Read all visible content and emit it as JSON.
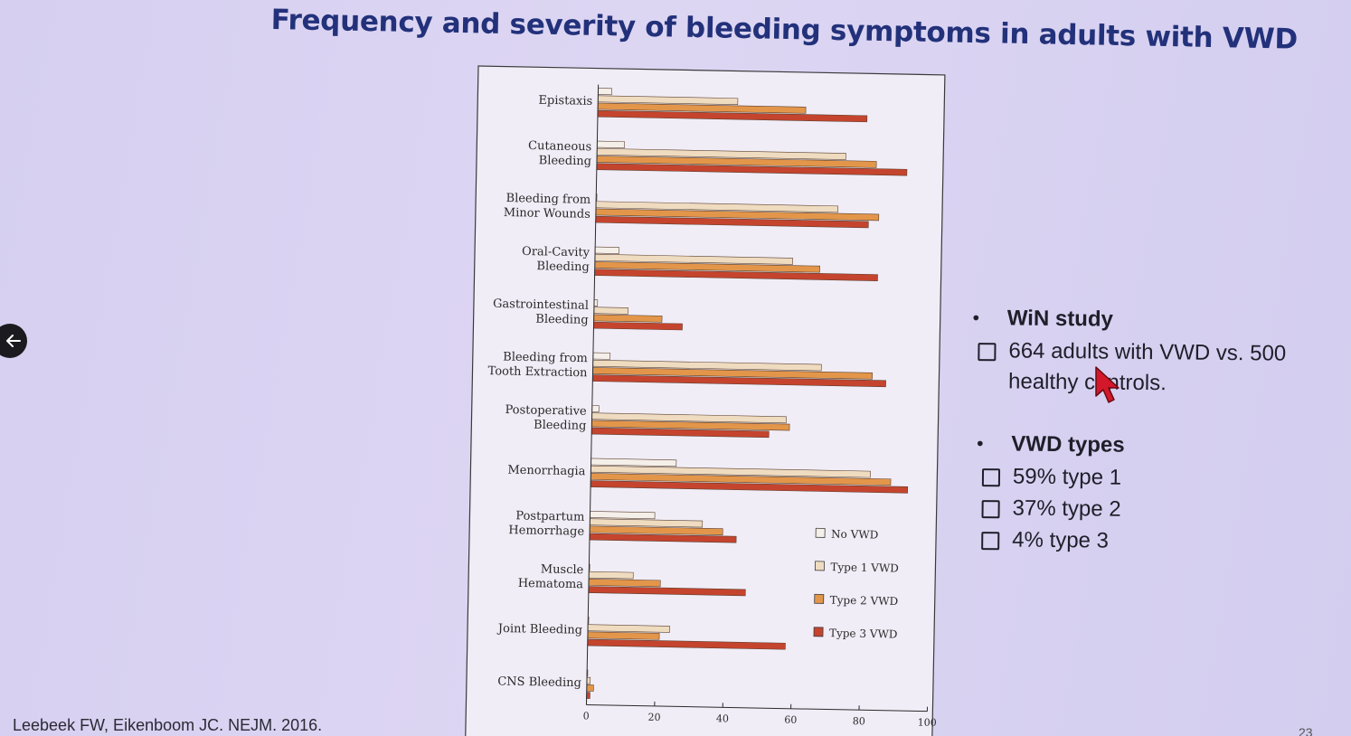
{
  "slide": {
    "title": "Frequency and severity of bleeding symptoms in adults with VWD",
    "citation": "Leebeek FW, Eikenboom JC. NEJM. 2016.",
    "page_number": "23"
  },
  "bullets": [
    {
      "heading": "WiN study",
      "items": [
        "664 adults with VWD vs. 500 healthy controls."
      ]
    },
    {
      "heading": "VWD types",
      "items": [
        "59% type 1",
        "37% type 2",
        "4% type 3"
      ]
    }
  ],
  "colors": {
    "title": "#22317a",
    "no_vwd": "#f4efe8",
    "type1": "#efdcc0",
    "type2": "#e3964a",
    "type3": "#c5442e",
    "back_button": "#1b1b1f",
    "cursor": "#d2182a"
  },
  "icons": {
    "back": "arrow-left-icon",
    "pointer": "mouse-cursor-icon"
  },
  "chart_data": {
    "type": "bar",
    "orientation": "horizontal",
    "categories": [
      "Epistaxis",
      "Cutaneous Bleeding",
      "Bleeding from Minor Wounds",
      "Oral-Cavity Bleeding",
      "Gastrointestinal Bleeding",
      "Bleeding from Tooth Extraction",
      "Postoperative Bleeding",
      "Menorrhagia",
      "Postpartum Hemorrhage",
      "Muscle Hematoma",
      "Joint Bleeding",
      "CNS Bleeding"
    ],
    "category_lines": [
      [
        "Epistaxis"
      ],
      [
        "Cutaneous",
        "Bleeding"
      ],
      [
        "Bleeding from",
        "Minor Wounds"
      ],
      [
        "Oral-Cavity",
        "Bleeding"
      ],
      [
        "Gastrointestinal",
        "Bleeding"
      ],
      [
        "Bleeding from",
        "Tooth Extraction"
      ],
      [
        "Postoperative",
        "Bleeding"
      ],
      [
        "Menorrhagia"
      ],
      [
        "Postpartum",
        "Hemorrhage"
      ],
      [
        "Muscle",
        "Hematoma"
      ],
      [
        "Joint Bleeding"
      ],
      [
        "CNS Bleeding"
      ]
    ],
    "series": [
      {
        "name": "No VWD",
        "values": [
          4,
          8,
          0,
          7,
          1,
          5,
          2,
          25,
          19,
          0,
          0,
          0
        ]
      },
      {
        "name": "Type 1 VWD",
        "values": [
          41,
          73,
          71,
          58,
          10,
          67,
          57,
          82,
          33,
          13,
          24,
          1
        ]
      },
      {
        "name": "Type 2 VWD",
        "values": [
          61,
          82,
          83,
          66,
          20,
          82,
          58,
          88,
          39,
          21,
          21,
          2
        ]
      },
      {
        "name": "Type 3 VWD",
        "values": [
          79,
          91,
          80,
          83,
          26,
          86,
          52,
          93,
          43,
          46,
          58,
          1
        ]
      }
    ],
    "xlim": [
      0,
      100
    ],
    "xticks": [
      0,
      20,
      40,
      60,
      80,
      100
    ],
    "title": "",
    "xlabel": "",
    "ylabel": "",
    "legend_position": "right, lower half",
    "grid": false
  }
}
